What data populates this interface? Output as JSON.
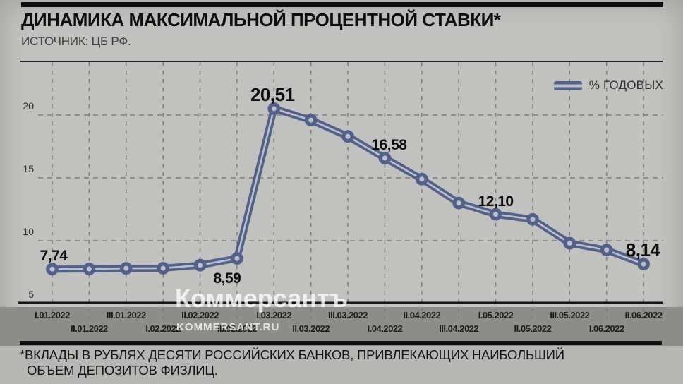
{
  "header": {
    "title": "ДИНАМИКА МАКСИМАЛЬНОЙ ПРОЦЕНТНОЙ СТАВКИ*",
    "source": "ИСТОЧНИК: ЦБ РФ."
  },
  "legend": {
    "label": "% ГОДОВЫХ"
  },
  "watermark": {
    "big": "Коммерсантъ",
    "small": "KOMMERSANT.RU"
  },
  "footnote": {
    "line1": "*ВКЛАДЫ В РУБЛЯХ ДЕСЯТИ РОССИЙСКИХ БАНКОВ, ПРИВЛЕКАЮЩИХ НАИБОЛЬШИЙ",
    "line2": "ОБЪЕМ ДЕПОЗИТОВ ФИЗЛИЦ."
  },
  "colors": {
    "background": "#c1c1bf",
    "band": "#8d8d8a",
    "line": "#53618a",
    "line_core": "#bcc0c9",
    "grid": "#7c7c79",
    "axis": "#141414"
  },
  "chart_data": {
    "type": "line",
    "title": "ДИНАМИКА МАКСИМАЛЬНОЙ ПРОЦЕНТНОЙ СТАВКИ*",
    "ylabel": "% годовых",
    "xlabel": "",
    "grid": true,
    "legend_position": "top-right",
    "ylim": [
      5,
      24
    ],
    "yticks": [
      5,
      10,
      15,
      20
    ],
    "x": [
      "I.01.2022",
      "II.01.2022",
      "III.01.2022",
      "I.02.2022",
      "II.02.2022",
      "III.02.2022",
      "I.03.2022",
      "II.03.2022",
      "III.03.2022",
      "I.04.2022",
      "II.04.2022",
      "III.04.2022",
      "I.05.2022",
      "II.05.2022",
      "III.05.2022",
      "I.06.2022",
      "II.06.2022"
    ],
    "series": [
      {
        "name": "% ГОДОВЫХ",
        "values": [
          7.74,
          7.75,
          7.8,
          7.81,
          8.05,
          8.59,
          20.51,
          19.6,
          18.3,
          16.58,
          14.9,
          13.0,
          12.1,
          11.7,
          9.8,
          9.26,
          8.14
        ]
      }
    ],
    "point_labels": [
      {
        "index": 0,
        "text": "7,74",
        "placement": "above",
        "size": "normal",
        "dx": 2
      },
      {
        "index": 5,
        "text": "8,59",
        "placement": "below",
        "size": "normal",
        "dx": -14
      },
      {
        "index": 6,
        "text": "20,51",
        "placement": "above",
        "size": "big",
        "dx": -2
      },
      {
        "index": 9,
        "text": "16,58",
        "placement": "above",
        "size": "normal",
        "dx": 6
      },
      {
        "index": 12,
        "text": "12,10",
        "placement": "above",
        "size": "normal",
        "dx": 0
      },
      {
        "index": 16,
        "text": "8,14",
        "placement": "above",
        "size": "big",
        "dx": -1
      }
    ]
  }
}
